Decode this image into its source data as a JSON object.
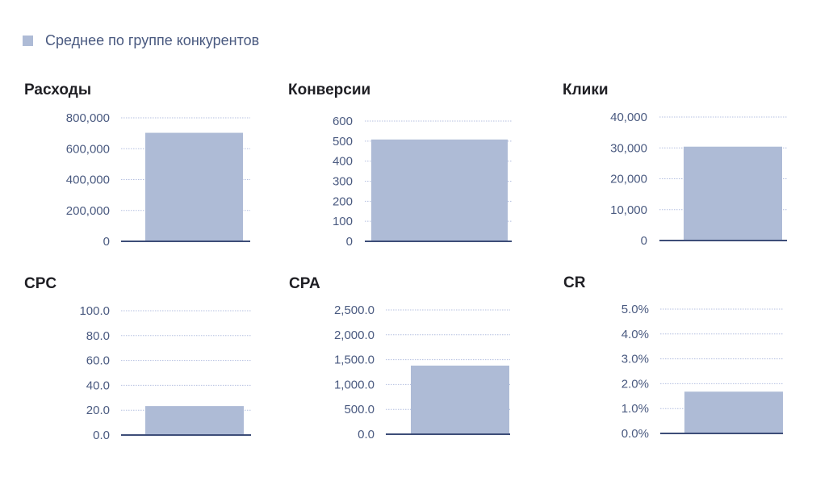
{
  "legend": {
    "label": "Среднее по группе конкурентов",
    "color": "#aebbd6"
  },
  "colors": {
    "bar": "#aebbd6",
    "grid": "#b4bfe0",
    "axis": "#3d4d78",
    "tick_text": "#4a5a80"
  },
  "chart_data": [
    {
      "type": "bar",
      "title": "Расходы",
      "series": [
        {
          "name": "Среднее по группе конкурентов",
          "values": [
            703000
          ]
        }
      ],
      "ylim": [
        0,
        800000
      ],
      "yticks": [
        0,
        200000,
        400000,
        600000,
        800000
      ],
      "ytick_labels": [
        "0",
        "200,000",
        "400,000",
        "600,000",
        "800,000"
      ],
      "grid": true
    },
    {
      "type": "bar",
      "title": "Конверсии",
      "series": [
        {
          "name": "Среднее по группе конкурентов",
          "values": [
            508
          ]
        }
      ],
      "ylim": [
        0,
        600
      ],
      "yticks": [
        0,
        100,
        200,
        300,
        400,
        500,
        600
      ],
      "ytick_labels": [
        "0",
        "100",
        "200",
        "300",
        "400",
        "500",
        "600"
      ],
      "grid": true
    },
    {
      "type": "bar",
      "title": "Клики",
      "series": [
        {
          "name": "Среднее по группе конкурентов",
          "values": [
            30400
          ]
        }
      ],
      "ylim": [
        0,
        40000
      ],
      "yticks": [
        0,
        10000,
        20000,
        30000,
        40000
      ],
      "ytick_labels": [
        "0",
        "10,000",
        "20,000",
        "30,000",
        "40,000"
      ],
      "grid": true
    },
    {
      "type": "bar",
      "title": "CPC",
      "series": [
        {
          "name": "Среднее по группе конкурентов",
          "values": [
            23.3
          ]
        }
      ],
      "ylim": [
        0,
        100
      ],
      "yticks": [
        0,
        20,
        40,
        60,
        80,
        100
      ],
      "ytick_labels": [
        "0.0",
        "20.0",
        "40.0",
        "60.0",
        "80.0",
        "100.0"
      ],
      "grid": true
    },
    {
      "type": "bar",
      "title": "CPA",
      "series": [
        {
          "name": "Среднее по группе конкурентов",
          "values": [
            1380
          ]
        }
      ],
      "ylim": [
        0,
        2500
      ],
      "yticks": [
        0,
        500,
        1000,
        1500,
        2000,
        2500
      ],
      "ytick_labels": [
        "0.0",
        "500.0",
        "1,000.0",
        "1,500.0",
        "2,000.0",
        "2,500.0"
      ],
      "grid": true
    },
    {
      "type": "bar",
      "title": "CR",
      "series": [
        {
          "name": "Среднее по группе конкурентов",
          "values": [
            1.68
          ]
        }
      ],
      "ylim": [
        0,
        5
      ],
      "yticks": [
        0,
        1,
        2,
        3,
        4,
        5
      ],
      "ytick_labels": [
        "0.0%",
        "1.0%",
        "2.0%",
        "3.0%",
        "4.0%",
        "5.0%"
      ],
      "grid": true
    }
  ]
}
